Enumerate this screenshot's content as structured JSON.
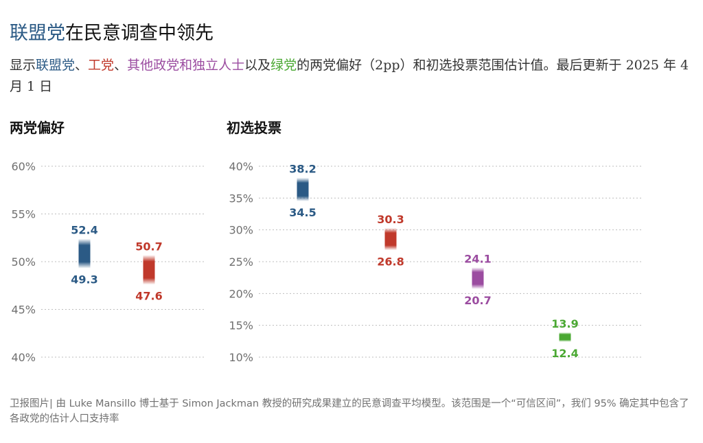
{
  "title": {
    "highlight": "联盟党",
    "rest": "在民意调查中领先",
    "highlight_color": "#2b5a85"
  },
  "subtitle": {
    "parts": [
      {
        "text": "显示",
        "color": "#333333"
      },
      {
        "text": "联盟党",
        "color": "#2b5a85"
      },
      {
        "text": "、",
        "color": "#333333"
      },
      {
        "text": "工党",
        "color": "#c0392b"
      },
      {
        "text": "、",
        "color": "#333333"
      },
      {
        "text": "其他政党和独立人士",
        "color": "#9b4ca0"
      },
      {
        "text": "以及",
        "color": "#333333"
      },
      {
        "text": "绿党",
        "color": "#4aa832"
      },
      {
        "text": "的两党偏好（2pp）和初选投票范围估计值。最后更新于 2025 年 4 月 1 日",
        "color": "#333333"
      }
    ]
  },
  "footnote": "卫报图片| 由 Luke Mansillo 博士基于 Simon Jackman 教授的研究成果建立的民意调查平均模型。该范围是一个“可信区间”，我们 95% 确定其中包含了各政党的估计人口支持率",
  "chart_data": [
    {
      "type": "range",
      "panel_title": "两党偏好",
      "y_ticks": [
        "40%",
        "45%",
        "50%",
        "55%",
        "60%"
      ],
      "ylim": [
        40,
        60
      ],
      "grid": true,
      "series": [
        {
          "color": "#2b5a85",
          "high": 52.4,
          "low": 49.3,
          "high_label": "52.4",
          "low_label": "49.3"
        },
        {
          "color": "#c0392b",
          "high": 50.7,
          "low": 47.6,
          "high_label": "50.7",
          "low_label": "47.6"
        }
      ]
    },
    {
      "type": "range",
      "panel_title": "初选投票",
      "y_ticks": [
        "10%",
        "15%",
        "20%",
        "25%",
        "30%",
        "35%",
        "40%"
      ],
      "ylim": [
        10,
        40
      ],
      "grid": true,
      "series": [
        {
          "color": "#2b5a85",
          "high": 38.2,
          "low": 34.5,
          "high_label": "38.2",
          "low_label": "34.5"
        },
        {
          "color": "#c0392b",
          "high": 30.3,
          "low": 26.8,
          "high_label": "30.3",
          "low_label": "26.8"
        },
        {
          "color": "#9b4ca0",
          "high": 24.1,
          "low": 20.7,
          "high_label": "24.1",
          "low_label": "20.7"
        },
        {
          "color": "#4aa832",
          "high": 13.9,
          "low": 12.4,
          "high_label": "13.9",
          "low_label": "12.4"
        }
      ]
    }
  ]
}
